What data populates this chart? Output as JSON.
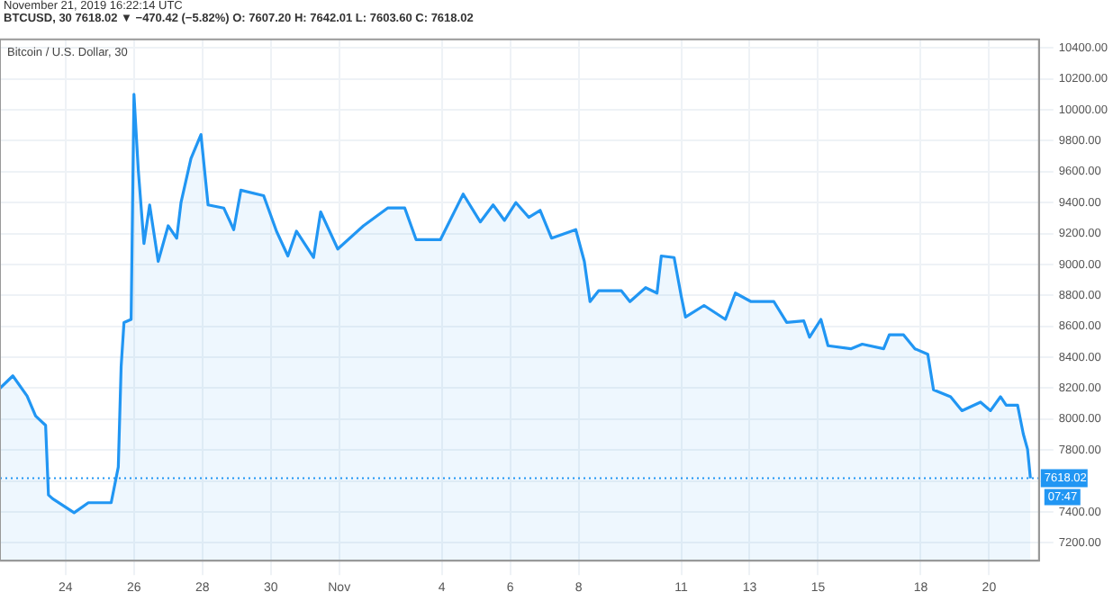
{
  "chart_data": {
    "type": "area",
    "title": "Bitcoin / U.S. Dollar, 30",
    "subtitle": "November 21, 2019 16:22:14 UTC",
    "annotations": [
      "BTCUSD, 30  7618.02 ▼ −470.42 (−5.82%)  O: 7607.20  H: 7642.01  L: 7603.60  C: 7618.02",
      "07:47"
    ],
    "x": [
      "2019-10-22T02:00",
      "2019-10-22T11:00",
      "2019-10-22T21:00",
      "2019-10-23T03:00",
      "2019-10-23T10:00",
      "2019-10-23T12:00",
      "2019-10-23T15:00",
      "2019-10-24T06:00",
      "2019-10-24T16:00",
      "2019-10-25T08:00",
      "2019-10-25T13:00",
      "2019-10-25T15:00",
      "2019-10-25T17:00",
      "2019-10-25T22:00",
      "2019-10-26T00:00",
      "2019-10-26T03:00",
      "2019-10-26T07:00",
      "2019-10-26T11:00",
      "2019-10-26T17:00",
      "2019-10-27T00:00",
      "2019-10-27T06:00",
      "2019-10-27T09:00",
      "2019-10-27T16:00",
      "2019-10-27T23:00",
      "2019-10-28T04:00",
      "2019-10-28T15:00",
      "2019-10-28T22:00",
      "2019-10-29T03:00",
      "2019-10-29T19:00",
      "2019-10-30T04:00",
      "2019-10-30T12:00",
      "2019-10-30T18:00",
      "2019-10-31T06:00",
      "2019-10-31T11:00",
      "2019-10-31T23:00",
      "2019-11-01T17:00",
      "2019-11-02T10:00",
      "2019-11-02T22:00",
      "2019-11-03T06:00",
      "2019-11-03T23:00",
      "2019-11-04T15:00",
      "2019-11-05T03:00",
      "2019-11-05T12:00",
      "2019-11-05T20:00",
      "2019-11-06T04:00",
      "2019-11-06T13:00",
      "2019-11-06T21:00",
      "2019-11-07T05:00",
      "2019-11-07T22:00",
      "2019-11-08T04:00",
      "2019-11-08T08:00",
      "2019-11-08T14:00",
      "2019-11-09T06:00",
      "2019-11-09T12:00",
      "2019-11-09T23:00",
      "2019-11-10T07:00",
      "2019-11-10T10:00",
      "2019-11-10T19:00",
      "2019-11-11T00:00",
      "2019-11-11T03:00",
      "2019-11-11T16:00",
      "2019-11-12T07:00",
      "2019-11-12T14:00",
      "2019-11-13T01:00",
      "2019-11-13T17:00",
      "2019-11-14T02:00",
      "2019-11-14T14:00",
      "2019-11-14T18:00",
      "2019-11-15T02:00",
      "2019-11-15T07:00",
      "2019-11-15T23:00",
      "2019-11-16T07:00",
      "2019-11-16T22:00",
      "2019-11-17T02:00",
      "2019-11-17T12:00",
      "2019-11-17T20:00",
      "2019-11-18T05:00",
      "2019-11-18T09:00",
      "2019-11-18T21:00",
      "2019-11-19T05:00",
      "2019-11-19T18:00",
      "2019-11-20T01:00",
      "2019-11-20T08:00",
      "2019-11-20T12:00",
      "2019-11-20T20:00",
      "2019-11-21T00:00",
      "2019-11-21T03:00",
      "2019-11-21T05:00"
    ],
    "series": [
      {
        "color": "#2196f3",
        "values": [
          8200,
          8280,
          8150,
          8020,
          7960,
          7510,
          7485,
          7395,
          7460,
          7460,
          7690,
          8340,
          8625,
          8645,
          10100,
          9615,
          9135,
          9385,
          9020,
          9250,
          9170,
          9400,
          9685,
          9840,
          9385,
          9365,
          9225,
          9480,
          9445,
          9215,
          9055,
          9215,
          9045,
          9340,
          9100,
          9250,
          9365,
          9365,
          9160,
          9160,
          9455,
          9275,
          9385,
          9285,
          9400,
          9305,
          9350,
          9170,
          9225,
          9020,
          8760,
          8830,
          8830,
          8760,
          8850,
          8815,
          9055,
          9045,
          8795,
          8660,
          8735,
          8645,
          8815,
          8760,
          8760,
          8625,
          8635,
          8530,
          8645,
          8475,
          8455,
          8485,
          8455,
          8545,
          8545,
          8455,
          8420,
          8190,
          8145,
          8055,
          8110,
          8055,
          8145,
          8090,
          8090,
          7905,
          7805,
          7618.02
        ]
      }
    ],
    "xlim": [
      "2019-10-22T02:00",
      "2019-11-21T11:00"
    ],
    "xticks": [
      {
        "value": "2019-10-24",
        "label": "24"
      },
      {
        "value": "2019-10-26",
        "label": "26"
      },
      {
        "value": "2019-10-28",
        "label": "28"
      },
      {
        "value": "2019-10-30",
        "label": "30"
      },
      {
        "value": "2019-11-01",
        "label": "Nov"
      },
      {
        "value": "2019-11-04",
        "label": "4"
      },
      {
        "value": "2019-11-06",
        "label": "6"
      },
      {
        "value": "2019-11-08",
        "label": "8"
      },
      {
        "value": "2019-11-11",
        "label": "11"
      },
      {
        "value": "2019-11-13",
        "label": "13"
      },
      {
        "value": "2019-11-15",
        "label": "15"
      },
      {
        "value": "2019-11-18",
        "label": "18"
      },
      {
        "value": "2019-11-20",
        "label": "20"
      }
    ],
    "ylim": [
      7085,
      10455
    ],
    "yticks": [
      {
        "value": 7200,
        "label": "7200.00"
      },
      {
        "value": 7400,
        "label": "7400.00"
      },
      {
        "value": 7600,
        "label": null
      },
      {
        "value": 7800,
        "label": "7800.00"
      },
      {
        "value": 8000,
        "label": "8000.00"
      },
      {
        "value": 8200,
        "label": "8200.00"
      },
      {
        "value": 8400,
        "label": "8400.00"
      },
      {
        "value": 8600,
        "label": "8600.00"
      },
      {
        "value": 8800,
        "label": "8800.00"
      },
      {
        "value": 9000,
        "label": "9000.00"
      },
      {
        "value": 9200,
        "label": "9200.00"
      },
      {
        "value": 9400,
        "label": "9400.00"
      },
      {
        "value": 9600,
        "label": "9600.00"
      },
      {
        "value": 9800,
        "label": "9800.00"
      },
      {
        "value": 10000,
        "label": "10000.00"
      },
      {
        "value": 10200,
        "label": "10200.00"
      },
      {
        "value": 10400,
        "label": "10400.00"
      }
    ],
    "ref_lines": [
      {
        "axis": "y",
        "value": 7618.02,
        "label": "7618.02",
        "color": "#2196f3",
        "line_style": "dotted"
      }
    ],
    "grid": true,
    "marker": "none",
    "legend": false
  }
}
